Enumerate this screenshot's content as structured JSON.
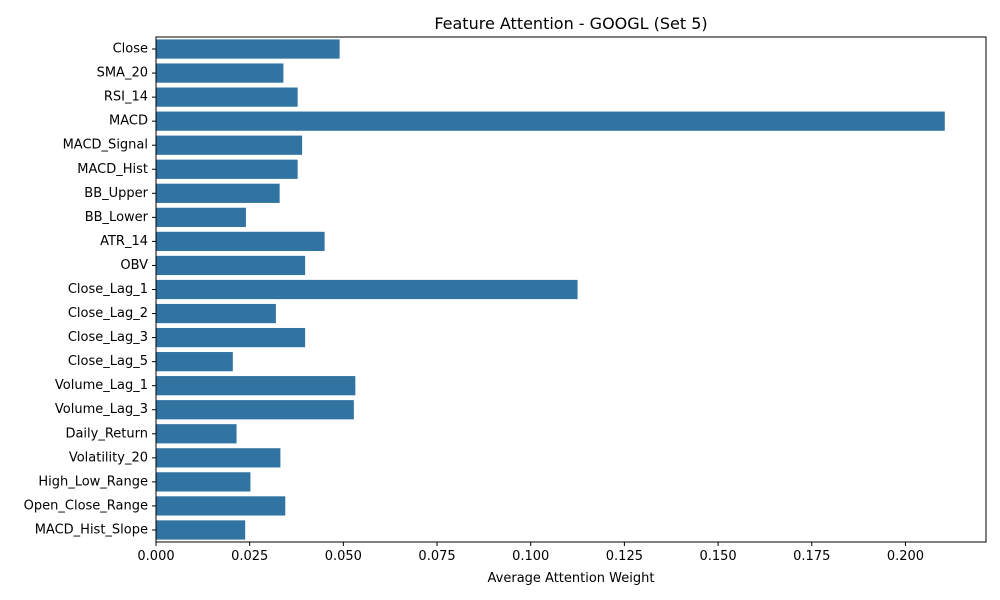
{
  "chart_data": {
    "type": "bar",
    "orientation": "horizontal",
    "title": "Feature Attention - GOOGL (Set 5)",
    "xlabel": "Average Attention Weight",
    "ylabel": "",
    "xlim": [
      0,
      0.2215
    ],
    "xticks": [
      0.0,
      0.025,
      0.05,
      0.075,
      0.1,
      0.125,
      0.15,
      0.175,
      0.2
    ],
    "xtick_labels": [
      "0.000",
      "0.025",
      "0.050",
      "0.075",
      "0.100",
      "0.125",
      "0.150",
      "0.175",
      "0.200"
    ],
    "grid": false,
    "bar_color": "#3274a1",
    "categories": [
      "Close",
      "SMA_20",
      "RSI_14",
      "MACD",
      "MACD_Signal",
      "MACD_Hist",
      "BB_Upper",
      "BB_Lower",
      "ATR_14",
      "OBV",
      "Close_Lag_1",
      "Close_Lag_2",
      "Close_Lag_3",
      "Close_Lag_5",
      "Volume_Lag_1",
      "Volume_Lag_3",
      "Daily_Return",
      "Volatility_20",
      "High_Low_Range",
      "Open_Close_Range",
      "MACD_Hist_Slope"
    ],
    "values": [
      0.049,
      0.034,
      0.0378,
      0.2105,
      0.039,
      0.0378,
      0.033,
      0.024,
      0.045,
      0.0398,
      0.1125,
      0.032,
      0.0398,
      0.0205,
      0.0532,
      0.0528,
      0.0215,
      0.0332,
      0.0252,
      0.0345,
      0.0238
    ]
  }
}
